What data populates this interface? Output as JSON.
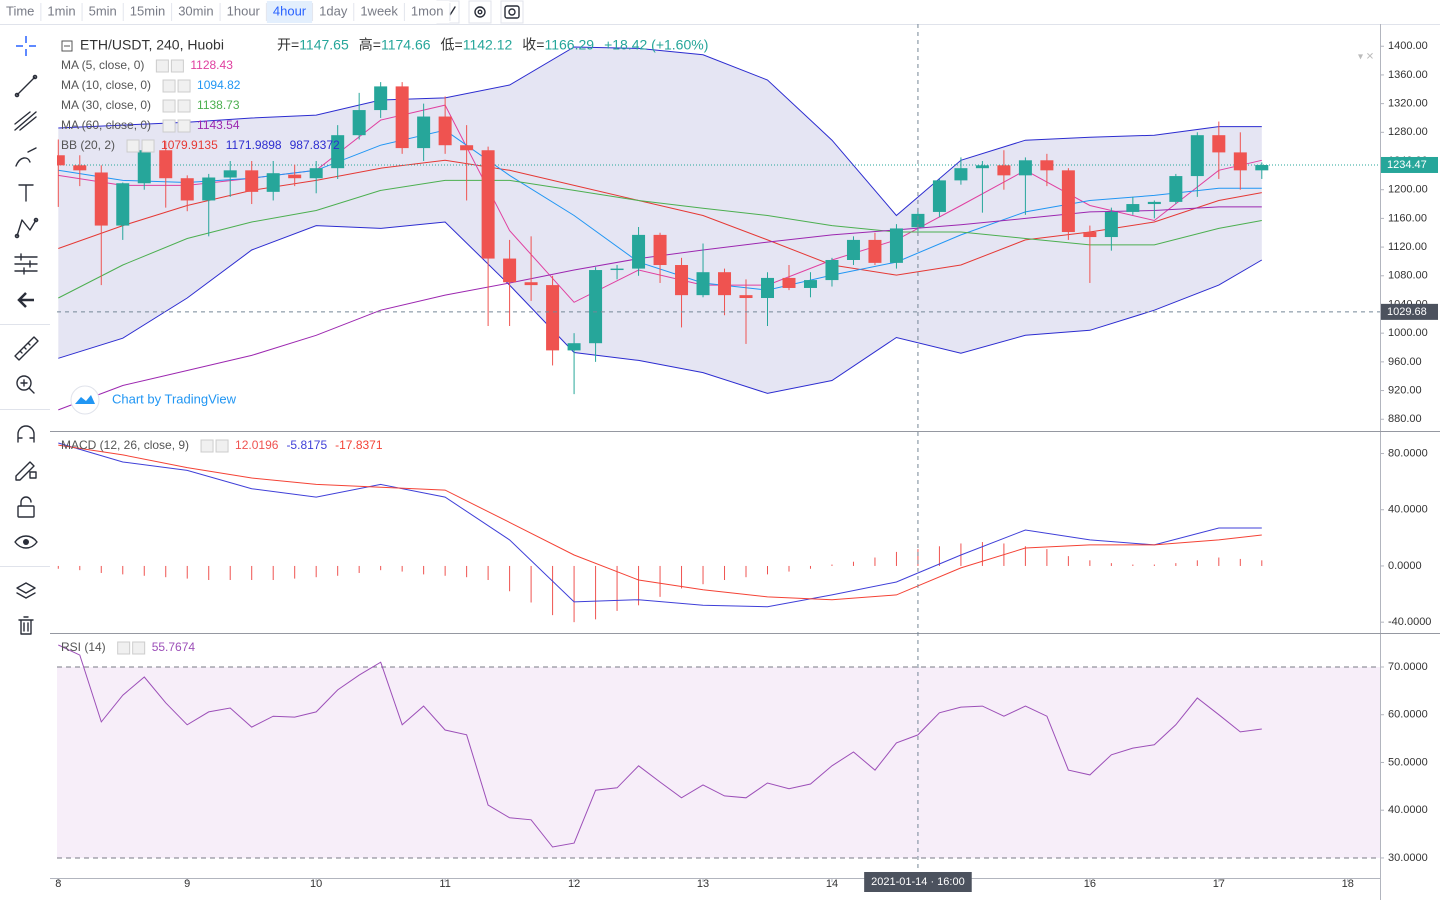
{
  "toolbar": {
    "intervals": [
      "Time",
      "1min",
      "5min",
      "15min",
      "30min",
      "1hour",
      "4hour",
      "1day",
      "1week",
      "1mon"
    ],
    "selected_index": 6
  },
  "chart_data": [
    {
      "type": "candlestick",
      "title": "ETH/USDT, 240, Huobi",
      "ohlc_legend": [
        {
          "label": "开=",
          "value": 1147.65
        },
        {
          "label": "高=",
          "value": 1174.66
        },
        {
          "label": "低=",
          "value": 1142.12
        },
        {
          "label": "收=",
          "value": 1166.29
        }
      ],
      "change": "+18.42 (+1.60%)",
      "x": [
        8,
        8.1667,
        8.3333,
        8.5,
        8.6667,
        8.8333,
        9,
        9.1667,
        9.3333,
        9.5,
        9.6667,
        9.8333,
        10,
        10.1667,
        10.3333,
        10.5,
        10.6667,
        10.8333,
        11,
        11.1667,
        11.3333,
        11.5,
        11.6667,
        11.8333,
        12,
        12.1667,
        12.3333,
        12.5,
        12.6667,
        12.8333,
        13,
        13.1667,
        13.3333,
        13.5,
        13.6667,
        13.8333,
        14,
        14.1667,
        14.3333,
        14.5,
        14.6667,
        14.8333,
        15,
        15.1667,
        15.3333,
        15.5,
        15.6667,
        15.8333,
        16,
        16.1667,
        16.3333,
        16.5,
        16.6667,
        16.8333,
        17,
        17.1667,
        17.3333
      ],
      "open": [
        1248,
        1234,
        1224,
        1150,
        1209,
        1255,
        1216,
        1185,
        1217,
        1227,
        1197,
        1221,
        1216,
        1230,
        1276,
        1311,
        1344,
        1258,
        1302,
        1262,
        1255,
        1104,
        1071,
        1067,
        976,
        986,
        1088,
        1090,
        1137,
        1095,
        1053,
        1085,
        1053,
        1049,
        1077,
        1063,
        1074,
        1102,
        1130,
        1098,
        1147.65,
        1169,
        1213,
        1230,
        1234,
        1220,
        1241,
        1227,
        1141,
        1134,
        1169,
        1180,
        1183,
        1219,
        1276,
        1252,
        1227
      ],
      "high": [
        1270,
        1248,
        1234,
        1210,
        1268,
        1268,
        1220,
        1222,
        1240,
        1240,
        1240,
        1235,
        1240,
        1290,
        1335,
        1350,
        1350,
        1320,
        1330,
        1290,
        1260,
        1130,
        1135,
        1080,
        1000,
        1092,
        1095,
        1148,
        1140,
        1105,
        1125,
        1090,
        1075,
        1085,
        1095,
        1085,
        1105,
        1135,
        1140,
        1152,
        1174.66,
        1215,
        1245,
        1240,
        1255,
        1245,
        1250,
        1230,
        1150,
        1175,
        1190,
        1185,
        1222,
        1280,
        1295,
        1280,
        1238
      ],
      "low": [
        1176,
        1205,
        1067,
        1130,
        1200,
        1175,
        1170,
        1135,
        1190,
        1180,
        1185,
        1205,
        1195,
        1215,
        1270,
        1300,
        1250,
        1240,
        1250,
        1185,
        1010,
        1010,
        1045,
        955,
        915,
        960,
        1075,
        1080,
        1070,
        1008,
        1050,
        1025,
        985,
        1010,
        1060,
        1050,
        1065,
        1095,
        1095,
        1090,
        1142.12,
        1162,
        1207,
        1168,
        1200,
        1165,
        1205,
        1130,
        1070,
        1115,
        1165,
        1160,
        1180,
        1190,
        1215,
        1200,
        1215
      ],
      "close": [
        1234,
        1227,
        1150,
        1209,
        1255,
        1216,
        1185,
        1217,
        1227,
        1197,
        1223,
        1216,
        1230,
        1276,
        1311,
        1344,
        1258,
        1302,
        1262,
        1255,
        1104,
        1071,
        1067,
        976,
        986,
        1088,
        1090,
        1137,
        1095,
        1053,
        1085,
        1053,
        1049,
        1077,
        1063,
        1074,
        1102,
        1130,
        1098,
        1146,
        1166.29,
        1213,
        1230,
        1234,
        1220,
        1241,
        1227,
        1141,
        1134,
        1169,
        1180,
        1183,
        1219,
        1276,
        1252,
        1227,
        1234.47
      ],
      "up_color": "#26a69a",
      "down_color": "#ef5350",
      "bollinger": {
        "name": "BB (20, 2)",
        "fill": "rgba(70,70,170,0.14)",
        "lines": [
          {
            "color": "#e53935",
            "legend_value": 1079.9135,
            "x": [
              8,
              8.5,
              9,
              9.5,
              10,
              10.5,
              11,
              11.5,
              12,
              12.5,
              13,
              13.5,
              14,
              14.5,
              15,
              15.5,
              16,
              16.5,
              17,
              17.3333
            ],
            "values": [
              1118,
              1150,
              1178,
              1199,
              1213,
              1230,
              1241,
              1227,
              1206,
              1185,
              1164,
              1130,
              1095,
              1081,
              1095,
              1130,
              1141,
              1155,
              1185,
              1196
            ]
          },
          {
            "color": "#2c2cd0",
            "legend_value": 1171.9898,
            "x": [
              8,
              8.5,
              9,
              9.5,
              10,
              10.5,
              11,
              11.5,
              12,
              12.5,
              13,
              13.5,
              14,
              14.5,
              15,
              15.5,
              16,
              16.5,
              17,
              17.3333
            ],
            "values": [
              1286,
              1290,
              1294,
              1300,
              1304,
              1325,
              1328,
              1346,
              1399,
              1397,
              1388,
              1353,
              1269,
              1164,
              1241,
              1269,
              1273,
              1276,
              1288,
              1288
            ]
          },
          {
            "color": "#2c2cd0",
            "legend_value": 987.8372,
            "x": [
              8,
              8.5,
              9,
              9.5,
              10,
              10.5,
              11,
              11.5,
              12,
              12.5,
              13,
              13.5,
              14,
              14.5,
              15,
              15.5,
              16,
              16.5,
              17,
              17.3333
            ],
            "values": [
              965,
              993,
              1049,
              1116,
              1150,
              1146,
              1155,
              1067,
              973,
              962,
              945,
              916,
              934,
              994,
              972,
              997,
              1004,
              1032,
              1067,
              1102
            ]
          }
        ]
      },
      "overlays": [
        {
          "name": "MA (5, close, 0)",
          "color": "#e040a0",
          "legend_value": 1128.43,
          "x": [
            8,
            8.5,
            9,
            9.5,
            10,
            10.5,
            11,
            11.5,
            12,
            12.5,
            13,
            13.5,
            14,
            14.5,
            15,
            15.5,
            16,
            16.5,
            17,
            17.3333
          ],
          "values": [
            1220,
            1206,
            1206,
            1216,
            1227,
            1297,
            1318,
            1143,
            1043,
            1088,
            1067,
            1067,
            1102,
            1130,
            1178,
            1227,
            1178,
            1157,
            1227,
            1241
          ]
        },
        {
          "name": "MA (10, close, 0)",
          "color": "#2196f3",
          "legend_value": 1094.82,
          "x": [
            8,
            8.5,
            9,
            9.5,
            10,
            10.5,
            11,
            11.5,
            12,
            12.5,
            13,
            13.5,
            14,
            14.5,
            15,
            15.5,
            16,
            16.5,
            17,
            17.3333
          ],
          "values": [
            1227,
            1213,
            1210,
            1216,
            1227,
            1262,
            1283,
            1220,
            1164,
            1099,
            1070,
            1060,
            1081,
            1099,
            1137,
            1169,
            1185,
            1192,
            1202,
            1202
          ]
        },
        {
          "name": "MA (30, close, 0)",
          "color": "#4caf50",
          "legend_value": 1138.73,
          "x": [
            8,
            8.5,
            9,
            9.5,
            10,
            10.5,
            11,
            11.5,
            12,
            12.5,
            13,
            13.5,
            14,
            14.5,
            15,
            15.5,
            16,
            16.5,
            17,
            17.3333
          ],
          "values": [
            1049,
            1095,
            1132,
            1155,
            1171,
            1199,
            1213,
            1213,
            1199,
            1185,
            1174,
            1164,
            1150,
            1141,
            1141,
            1132,
            1123,
            1123,
            1146,
            1157
          ]
        },
        {
          "name": "MA (60, close, 0)",
          "color": "#9c27b0",
          "legend_value": 1143.54,
          "x": [
            8,
            8.5,
            9,
            9.5,
            10,
            10.5,
            11,
            11.5,
            12,
            12.5,
            13,
            13.5,
            14,
            14.5,
            15,
            15.5,
            16,
            16.5,
            17,
            17.3333
          ],
          "values": [
            893,
            927,
            948,
            969,
            997,
            1032,
            1053,
            1070,
            1088,
            1104,
            1116,
            1127,
            1137,
            1144,
            1151,
            1160,
            1169,
            1171,
            1176,
            1176
          ]
        }
      ],
      "last_price": 1234.47,
      "last_price_color": "#26a69a",
      "watermark": "Chart by TradingView",
      "xlim": [
        7.99,
        18.25
      ],
      "ylim": [
        865,
        1431
      ],
      "yticks": [
        {
          "value": 880,
          "label": "880.00"
        },
        {
          "value": 920,
          "label": "920.00"
        },
        {
          "value": 960,
          "label": "960.00"
        },
        {
          "value": 1000,
          "label": "1000.00"
        },
        {
          "value": 1040,
          "label": "1040.00"
        },
        {
          "value": 1080,
          "label": "1080.00"
        },
        {
          "value": 1120,
          "label": "1120.00"
        },
        {
          "value": 1160,
          "label": "1160.00"
        },
        {
          "value": 1200,
          "label": "1200.00"
        },
        {
          "value": 1240,
          "label": "1240.00"
        },
        {
          "value": 1280,
          "label": "1280.00"
        },
        {
          "value": 1320,
          "label": "1320.00"
        },
        {
          "value": 1360,
          "label": "1360.00"
        },
        {
          "value": 1400,
          "label": "1400.00"
        }
      ]
    },
    {
      "type": "macd",
      "name": "MACD (12, 26, close, 9)",
      "x": [
        8,
        8.1667,
        8.3333,
        8.5,
        8.6667,
        8.8333,
        9,
        9.1667,
        9.3333,
        9.5,
        9.6667,
        9.8333,
        10,
        10.1667,
        10.3333,
        10.5,
        10.6667,
        10.8333,
        11,
        11.1667,
        11.3333,
        11.5,
        11.6667,
        11.8333,
        12,
        12.1667,
        12.3333,
        12.5,
        12.6667,
        12.8333,
        13,
        13.1667,
        13.3333,
        13.5,
        13.6667,
        13.8333,
        14,
        14.1667,
        14.3333,
        14.5,
        14.6667,
        14.8333,
        15,
        15.1667,
        15.3333,
        15.5,
        15.6667,
        15.8333,
        16,
        16.1667,
        16.3333,
        16.5,
        16.6667,
        16.8333,
        17,
        17.1667,
        17.3333
      ],
      "histogram": [
        -2,
        -3,
        -5,
        -6,
        -7,
        -8,
        -9,
        -10,
        -10,
        -10,
        -10,
        -9,
        -8,
        -7,
        -5,
        -3,
        -4,
        -6,
        -7,
        -8,
        -10,
        -18,
        -26,
        -35,
        -40,
        -38,
        -32,
        -28,
        -22,
        -16,
        -13,
        -10,
        -8,
        -6,
        -4,
        -2,
        1,
        3,
        6,
        10,
        12,
        14,
        16,
        17,
        16,
        14,
        12,
        7,
        4,
        2,
        1,
        1,
        2,
        4,
        6,
        5,
        4
      ],
      "histogram_color": "#ef5350",
      "histogram_legend_value": 12.0196,
      "series": [
        {
          "color": "#3f3fd8",
          "legend_value": -5.8175,
          "x": [
            8,
            8.5,
            9,
            9.5,
            10,
            10.5,
            11,
            11.5,
            12,
            12.5,
            13,
            13.5,
            14,
            14.5,
            15,
            15.5,
            16,
            16.5,
            17,
            17.3333
          ],
          "values": [
            87.5,
            74,
            68,
            55,
            49,
            58,
            49,
            18.5,
            -25.6,
            -24,
            -28,
            -29,
            -20.6,
            -11.4,
            7.8,
            25.6,
            18.5,
            15,
            27,
            27
          ]
        },
        {
          "color": "#f44336",
          "legend_value": -17.8371,
          "x": [
            8,
            8.5,
            9,
            9.5,
            10,
            10.5,
            11,
            11.5,
            12,
            12.5,
            13,
            13.5,
            14,
            14.5,
            15,
            15.5,
            16,
            16.5,
            17,
            17.3333
          ],
          "values": [
            86,
            79,
            70,
            62.6,
            58,
            56,
            54,
            31,
            7.8,
            -10,
            -17,
            -22,
            -24,
            -20.6,
            -1.4,
            12.8,
            15,
            15,
            18.5,
            22
          ]
        }
      ],
      "xlim": [
        7.99,
        18.25
      ],
      "ylim": [
        -47,
        94.6
      ],
      "yticks": [
        {
          "value": -40,
          "label": "-40.0000"
        },
        {
          "value": 0,
          "label": "0.0000"
        },
        {
          "value": 40,
          "label": "40.0000"
        },
        {
          "value": 80,
          "label": "80.0000"
        }
      ]
    },
    {
      "type": "line",
      "name": "RSI (14)",
      "legend_value": 55.7674,
      "color": "#9c4fb8",
      "x": [
        8,
        8.1667,
        8.3333,
        8.5,
        8.6667,
        8.8333,
        9,
        9.1667,
        9.3333,
        9.5,
        9.6667,
        9.8333,
        10,
        10.1667,
        10.3333,
        10.5,
        10.6667,
        10.8333,
        11,
        11.1667,
        11.3333,
        11.5,
        11.6667,
        11.8333,
        12,
        12.1667,
        12.3333,
        12.5,
        12.6667,
        12.8333,
        13,
        13.1667,
        13.3333,
        13.5,
        13.6667,
        13.8333,
        14,
        14.1667,
        14.3333,
        14.5,
        14.6667,
        14.8333,
        15,
        15.1667,
        15.3333,
        15.5,
        15.6667,
        15.8333,
        16,
        16.1667,
        16.3333,
        16.5,
        16.6667,
        16.8333,
        17,
        17.1667,
        17.3333
      ],
      "values": [
        74.6,
        72.5,
        58.5,
        64.1,
        67.9,
        62.5,
        57.9,
        60.6,
        61.4,
        57.4,
        59.7,
        59.5,
        60.6,
        65.2,
        68.3,
        71,
        57.9,
        61.8,
        56.8,
        55.8,
        41.1,
        38.4,
        38,
        32.3,
        33.1,
        44.2,
        44.7,
        49.3,
        45.9,
        42.6,
        45.3,
        43,
        42.6,
        45.7,
        44.5,
        45.5,
        49.3,
        52.2,
        48.4,
        54.1,
        55.7674,
        60.4,
        61.6,
        61.8,
        59.7,
        61.8,
        59.7,
        48.4,
        47.4,
        51.6,
        53,
        53.7,
        57.9,
        63.5,
        60,
        56.4,
        57
      ],
      "bands": [
        30,
        70
      ],
      "band_fill": "rgba(156,39,176,0.08)",
      "xlim": [
        7.99,
        18.25
      ],
      "ylim": [
        25.8,
        76.7
      ],
      "yticks": [
        {
          "value": 30,
          "label": "30.0000"
        },
        {
          "value": 40,
          "label": "40.0000"
        },
        {
          "value": 50,
          "label": "50.0000"
        },
        {
          "value": 60,
          "label": "60.0000"
        },
        {
          "value": 70,
          "label": "70.0000"
        }
      ],
      "xticks": [
        8,
        9,
        10,
        11,
        12,
        13,
        14,
        15,
        16,
        17,
        18
      ]
    }
  ],
  "crosshair": {
    "x": {
      "value": 14.6667,
      "label": "2021-01-14 · 16:00"
    },
    "price": 1029.68
  }
}
